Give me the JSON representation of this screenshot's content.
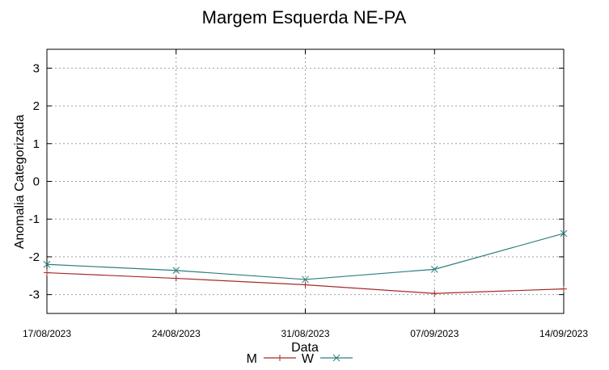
{
  "chart_data": {
    "type": "line",
    "title": "Margem Esquerda NE-PA",
    "xlabel": "Data",
    "ylabel": "Anomalia Categorizada",
    "categories": [
      "17/08/2023",
      "24/08/2023",
      "31/08/2023",
      "07/09/2023",
      "14/09/2023"
    ],
    "ylim": [
      -3.5,
      3.5
    ],
    "yticks": [
      3,
      2,
      1,
      0,
      -1,
      -2,
      -3
    ],
    "grid": true,
    "legend_position": "bottom-center",
    "series": [
      {
        "name": "M",
        "color": "#a52a2a",
        "marker": "plus",
        "values": [
          -2.42,
          -2.57,
          -2.74,
          -2.97,
          -2.85
        ]
      },
      {
        "name": "W",
        "color": "#2e7d7d",
        "marker": "cross",
        "values": [
          -2.2,
          -2.36,
          -2.6,
          -2.33,
          -1.38
        ]
      }
    ]
  }
}
